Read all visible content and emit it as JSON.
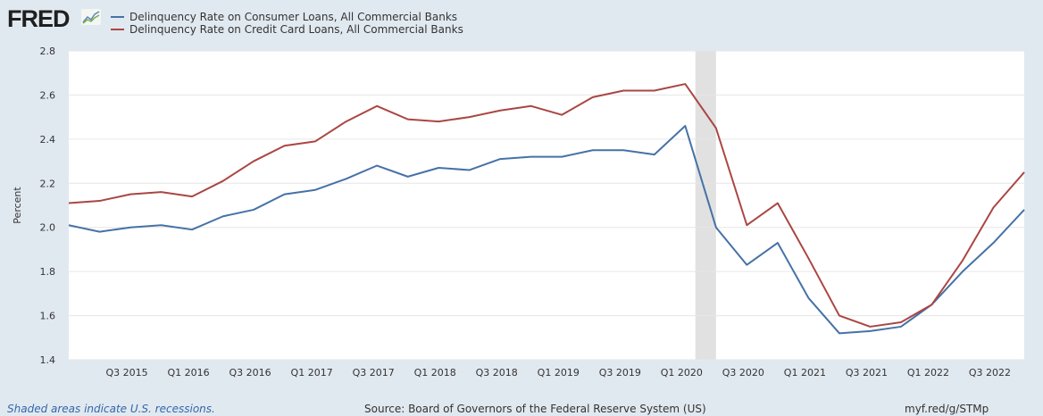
{
  "header": {
    "logo": "FRED"
  },
  "footer": {
    "note": "Shaded areas indicate U.S. recessions.",
    "source": "Source: Board of Governors of the Federal Reserve System (US)",
    "link": "myf.red/g/STMp"
  },
  "chart_data": {
    "type": "line",
    "ylabel": "Percent",
    "ylim": [
      1.4,
      2.8
    ],
    "yticks": [
      "1.4",
      "1.6",
      "1.8",
      "2.0",
      "2.2",
      "2.4",
      "2.6",
      "2.8"
    ],
    "grid": true,
    "legend_position": "top-left",
    "x": [
      "Q1 2015",
      "Q2 2015",
      "Q3 2015",
      "Q4 2015",
      "Q1 2016",
      "Q2 2016",
      "Q3 2016",
      "Q4 2016",
      "Q1 2017",
      "Q2 2017",
      "Q3 2017",
      "Q4 2017",
      "Q1 2018",
      "Q2 2018",
      "Q3 2018",
      "Q4 2018",
      "Q1 2019",
      "Q2 2019",
      "Q3 2019",
      "Q4 2019",
      "Q1 2020",
      "Q2 2020",
      "Q3 2020",
      "Q4 2020",
      "Q1 2021",
      "Q2 2021",
      "Q3 2021",
      "Q4 2021",
      "Q1 2022",
      "Q2 2022",
      "Q3 2022",
      "Q4 2022"
    ],
    "xticks": [
      "Q3 2015",
      "Q1 2016",
      "Q3 2016",
      "Q1 2017",
      "Q3 2017",
      "Q1 2018",
      "Q3 2018",
      "Q1 2019",
      "Q3 2019",
      "Q1 2020",
      "Q3 2020",
      "Q1 2021",
      "Q3 2021",
      "Q1 2022",
      "Q3 2022"
    ],
    "recession_quarter_index": [
      20.33,
      21.0
    ],
    "series": [
      {
        "name": "Delinquency Rate on Consumer Loans, All Commercial Banks",
        "color": "#4572a7",
        "values": [
          2.01,
          1.98,
          2.0,
          2.01,
          1.99,
          2.05,
          2.08,
          2.15,
          2.17,
          2.22,
          2.28,
          2.23,
          2.27,
          2.26,
          2.31,
          2.32,
          2.32,
          2.35,
          2.35,
          2.33,
          2.46,
          2.0,
          1.83,
          1.93,
          1.68,
          1.52,
          1.53,
          1.55,
          1.65,
          1.8,
          1.93,
          2.08
        ]
      },
      {
        "name": "Delinquency Rate on Credit Card Loans, All Commercial Banks",
        "color": "#aa4643",
        "values": [
          2.11,
          2.12,
          2.15,
          2.16,
          2.14,
          2.21,
          2.3,
          2.37,
          2.39,
          2.48,
          2.55,
          2.49,
          2.48,
          2.5,
          2.53,
          2.55,
          2.51,
          2.59,
          2.62,
          2.62,
          2.65,
          2.45,
          2.01,
          2.11,
          1.86,
          1.6,
          1.55,
          1.57,
          1.65,
          1.85,
          2.09,
          2.25
        ]
      }
    ]
  }
}
